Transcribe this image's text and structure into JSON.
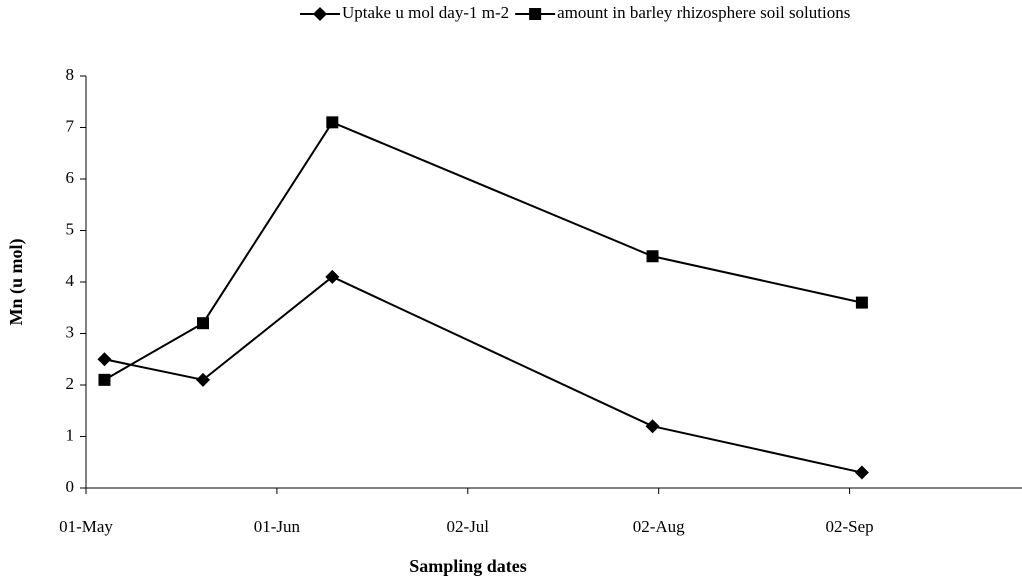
{
  "chart_data": {
    "type": "line",
    "x": [
      "04-May",
      "20-May",
      "10-Jun",
      "01-Aug",
      "04-Sep"
    ],
    "series": [
      {
        "name": "Uptake u mol day-1 m-2",
        "color": "#000000",
        "marker": "diamond",
        "values": [
          2.5,
          2.1,
          4.1,
          1.2,
          0.3
        ]
      },
      {
        "name": "amount in barley rhizosphere soil solutions",
        "color": "#000000",
        "marker": "square",
        "values": [
          2.1,
          3.2,
          7.1,
          4.5,
          3.6
        ]
      }
    ],
    "xlim": [
      "01-May",
      "30-Sep"
    ],
    "xticks": [
      "01-May",
      "01-Jun",
      "02-Jul",
      "02-Aug",
      "02-Sep"
    ],
    "ylim": [
      0,
      8
    ],
    "yticks": [
      0,
      1,
      2,
      3,
      4,
      5,
      6,
      7,
      8
    ],
    "xlabel": "Sampling dates",
    "ylabel": "Mn (u mol)",
    "legend": "top",
    "grid": false
  }
}
